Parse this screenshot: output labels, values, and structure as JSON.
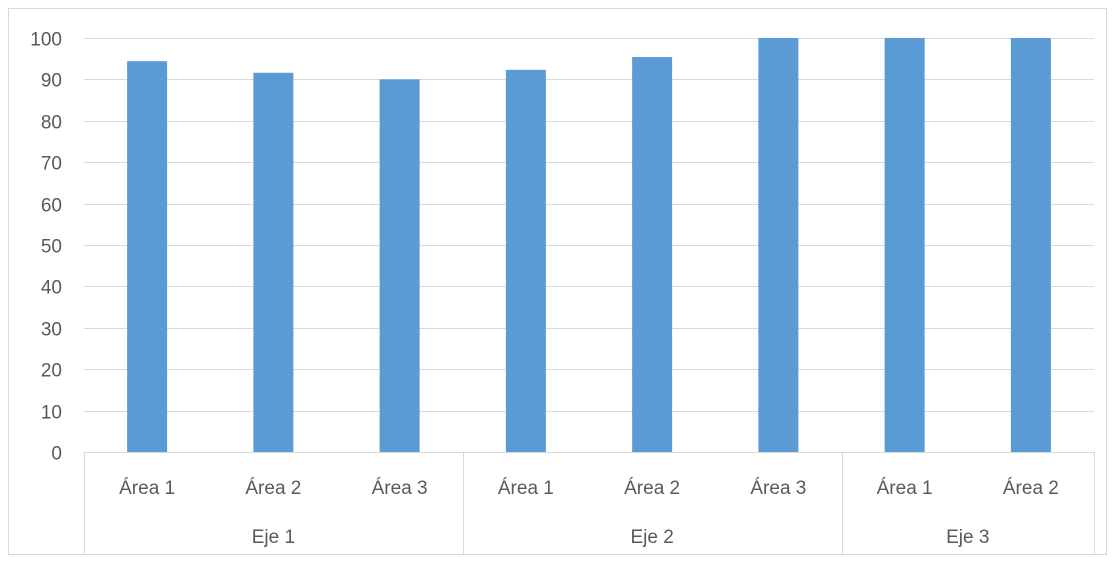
{
  "chart_data": {
    "type": "bar",
    "title": "",
    "xlabel": "",
    "ylabel": "",
    "ylim": [
      0,
      100
    ],
    "yticks": [
      0,
      10,
      20,
      30,
      40,
      50,
      60,
      70,
      80,
      90,
      100
    ],
    "grid": true,
    "legend": "none",
    "bar_color": "#5B9BD5",
    "categories": [
      {
        "group": "Eje 1",
        "label": "Área 1",
        "value": 94.4
      },
      {
        "group": "Eje 1",
        "label": "Área 2",
        "value": 91.6
      },
      {
        "group": "Eje 1",
        "label": "Área 3",
        "value": 90.0
      },
      {
        "group": "Eje 2",
        "label": "Área 1",
        "value": 92.3
      },
      {
        "group": "Eje 2",
        "label": "Área 2",
        "value": 95.4
      },
      {
        "group": "Eje 2",
        "label": "Área 3",
        "value": 100
      },
      {
        "group": "Eje 3",
        "label": "Área 1",
        "value": 100
      },
      {
        "group": "Eje 3",
        "label": "Área 2",
        "value": 100
      }
    ],
    "groups": [
      "Eje 1",
      "Eje 2",
      "Eje 3"
    ]
  }
}
